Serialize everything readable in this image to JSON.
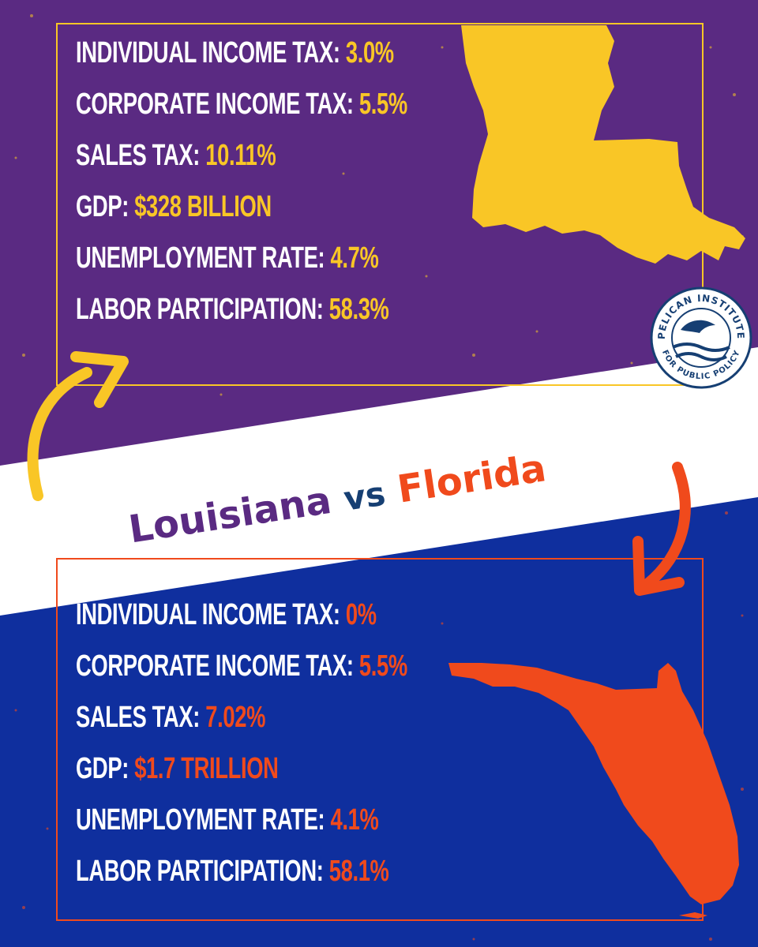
{
  "banner": {
    "louisiana": "Louisiana",
    "vs": "vs",
    "florida": "Florida"
  },
  "louisiana": {
    "rows": [
      {
        "label": "INDIVIDUAL INCOME TAX:",
        "value": "3.0%"
      },
      {
        "label": "CORPORATE INCOME TAX:",
        "value": "5.5%"
      },
      {
        "label": "SALES TAX:",
        "value": "10.11%"
      },
      {
        "label": "GDP:",
        "value": "$328 BILLION"
      },
      {
        "label": "UNEMPLOYMENT RATE:",
        "value": "4.7%"
      },
      {
        "label": "LABOR PARTICIPATION:",
        "value": "58.3%"
      }
    ]
  },
  "florida": {
    "rows": [
      {
        "label": "INDIVIDUAL INCOME TAX:",
        "value": "0%"
      },
      {
        "label": "CORPORATE INCOME TAX:",
        "value": "5.5%"
      },
      {
        "label": "SALES TAX:",
        "value": "7.02%"
      },
      {
        "label": "GDP:",
        "value": "$1.7 TRILLION"
      },
      {
        "label": "UNEMPLOYMENT RATE:",
        "value": "4.1%"
      },
      {
        "label": "LABOR PARTICIPATION:",
        "value": "58.1%"
      }
    ]
  },
  "logo": {
    "top_text": "PELICAN INSTITUTE",
    "bottom_text": "FOR PUBLIC POLICY"
  },
  "colors": {
    "purple": "#5a2a82",
    "blue": "#0f2f9e",
    "yellow": "#f9c626",
    "orange": "#f04a1c",
    "navy": "#163f73",
    "white": "#ffffff"
  }
}
